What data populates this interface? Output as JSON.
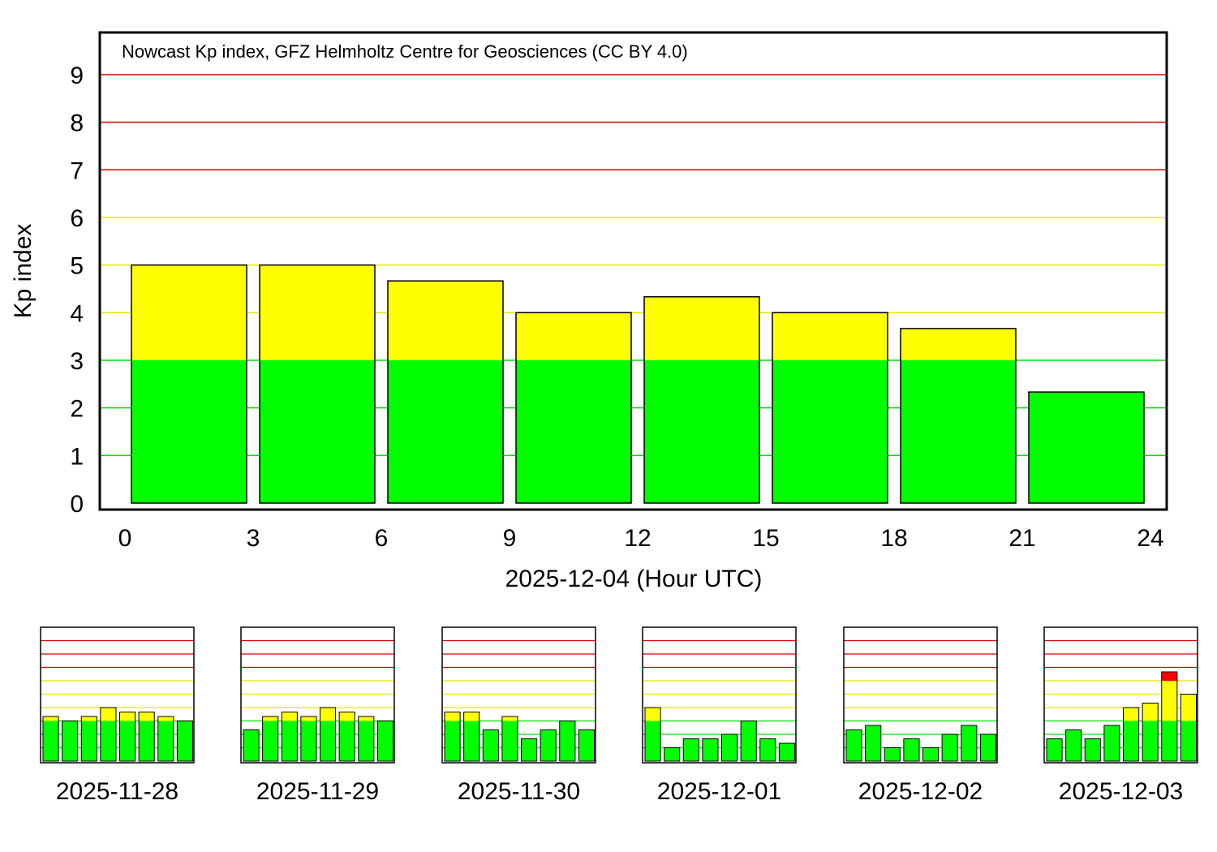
{
  "colors": {
    "green": "#00ff00",
    "yellow": "#ffff00",
    "red": "#ff0000",
    "grid_green": "#00e000",
    "grid_yellow": "#e8e800",
    "grid_red": "#e00000",
    "frame": "#000000",
    "background": "#ffffff"
  },
  "chart_data": [
    {
      "type": "bar",
      "title": "Nowcast Kp index, GFZ Helmholtz Centre for Geosciences (CC BY 4.0)",
      "xlabel": "2025-12-04 (Hour UTC)",
      "ylabel": "Kp index",
      "xlim": [
        0,
        24
      ],
      "ylim": [
        0,
        9.667
      ],
      "x_ticks": [
        "0",
        "3",
        "6",
        "9",
        "12",
        "15",
        "18",
        "21",
        "24"
      ],
      "y_ticks": [
        "0",
        "1",
        "2",
        "3",
        "4",
        "5",
        "6",
        "7",
        "8",
        "9"
      ],
      "thresholds": {
        "green_max": 3,
        "yellow_max": 6
      },
      "categories": [
        "00-03",
        "03-06",
        "06-09",
        "09-12",
        "12-15",
        "15-18",
        "18-21",
        "21-24"
      ],
      "values": [
        5.0,
        5.0,
        4.667,
        4.0,
        4.333,
        4.0,
        3.667,
        2.333
      ]
    },
    {
      "type": "bar",
      "label": "2025-11-28",
      "ylim": [
        0,
        9
      ],
      "values": [
        3.333,
        3.0,
        3.333,
        4.0,
        3.667,
        3.667,
        3.333,
        3.0
      ]
    },
    {
      "type": "bar",
      "label": "2025-11-29",
      "ylim": [
        0,
        9
      ],
      "values": [
        2.333,
        3.333,
        3.667,
        3.333,
        4.0,
        3.667,
        3.333,
        3.0
      ]
    },
    {
      "type": "bar",
      "label": "2025-11-30",
      "ylim": [
        0,
        9
      ],
      "values": [
        3.667,
        3.667,
        2.333,
        3.333,
        1.667,
        2.333,
        3.0,
        2.333
      ]
    },
    {
      "type": "bar",
      "label": "2025-12-01",
      "ylim": [
        0,
        9
      ],
      "values": [
        4.0,
        1.0,
        1.667,
        1.667,
        2.0,
        3.0,
        1.667,
        1.333
      ]
    },
    {
      "type": "bar",
      "label": "2025-12-02",
      "ylim": [
        0,
        9
      ],
      "values": [
        2.333,
        2.667,
        1.0,
        1.667,
        1.0,
        2.0,
        2.667,
        2.0
      ]
    },
    {
      "type": "bar",
      "label": "2025-12-03",
      "ylim": [
        0,
        9
      ],
      "values": [
        1.667,
        2.333,
        1.667,
        2.667,
        4.0,
        4.333,
        6.667,
        5.0
      ]
    }
  ]
}
